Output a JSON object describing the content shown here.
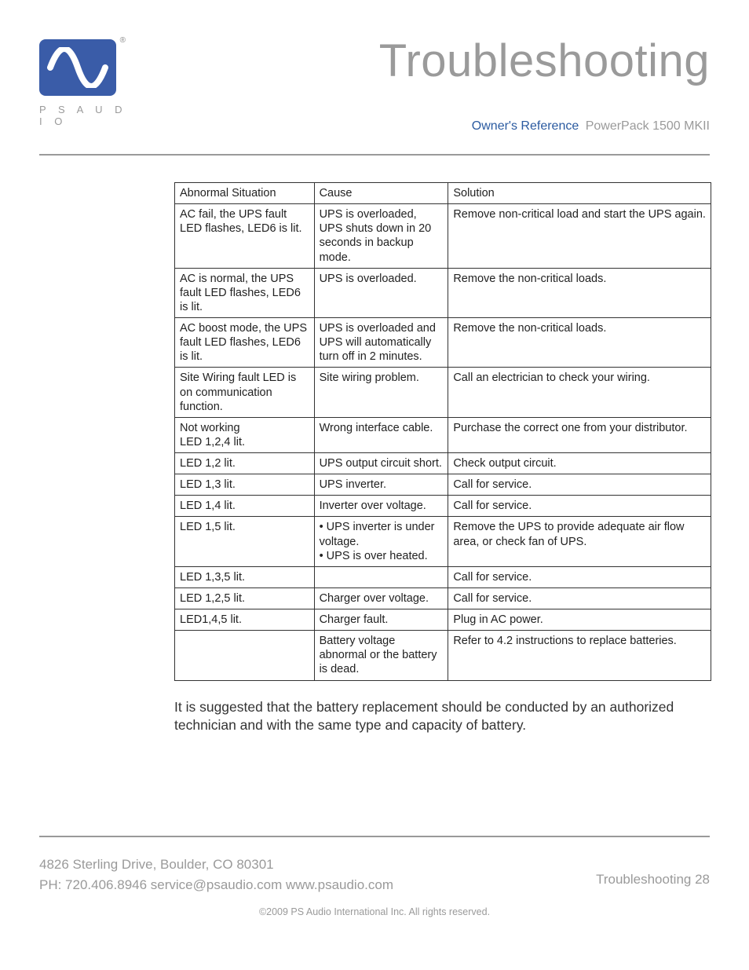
{
  "colors": {
    "brand_blue": "#3a5ca8",
    "accent_blue": "#2a5aa0",
    "gray_text": "#9a9a9a",
    "body_text": "#333333",
    "border": "#333333",
    "background": "#ffffff"
  },
  "typography": {
    "title_fontsize_pt": 44,
    "body_fontsize_pt": 11,
    "footer_fontsize_pt": 13
  },
  "logo": {
    "brand_text": "P S   A U D I O",
    "registered": "®"
  },
  "header": {
    "title": "Troubleshooting",
    "subtitle_blue": "Owner's Reference",
    "subtitle_gray": "PowerPack 1500 MKII"
  },
  "table": {
    "columns": [
      "Abnormal Situation",
      "Cause",
      "Solution"
    ],
    "col_widths_pct": [
      26,
      25,
      49
    ],
    "rows": [
      [
        "AC fail, the UPS fault LED flashes, LED6  is lit.",
        "UPS is overloaded, UPS shuts down in 20 seconds in backup mode.",
        "Remove non-critical load and start the UPS again."
      ],
      [
        "AC is normal, the UPS fault LED flashes, LED6 is lit.",
        "UPS is overloaded.",
        "Remove the non-critical loads."
      ],
      [
        "AC boost mode, the UPS fault LED flashes, LED6 is lit.",
        "UPS is overloaded and UPS will automatically turn off in 2 minutes.",
        "Remove the non-critical loads."
      ],
      [
        "Site Wiring fault LED is on communication function.",
        "Site wiring problem.",
        "Call an electrician to check your wiring."
      ],
      [
        "Not working\nLED 1,2,4 lit.",
        "Wrong interface cable.",
        "Purchase the correct one from your distributor."
      ],
      [
        "LED 1,2 lit.",
        "UPS output circuit short.",
        "Check output circuit."
      ],
      [
        "LED 1,3 lit.",
        "UPS inverter.",
        "Call for service."
      ],
      [
        "LED 1,4 lit.",
        "Inverter over voltage.",
        "Call for service."
      ],
      [
        "LED 1,5 lit.",
        "• UPS inverter is under voltage.\n• UPS is over heated.",
        "Remove the UPS to provide adequate air flow area, or check fan of UPS."
      ],
      [
        "LED 1,3,5 lit.",
        "",
        "Call for service."
      ],
      [
        "LED 1,2,5 lit.",
        "Charger over voltage.",
        "Call for service."
      ],
      [
        "LED1,4,5 lit.",
        "Charger fault.",
        "Plug in AC power."
      ],
      [
        "",
        "Battery voltage abnormal or the battery is dead.",
        "Refer to 4.2 instructions to replace batteries."
      ]
    ]
  },
  "note": "It is suggested that the battery replacement should be conducted by an authorized technician and with the same type and capacity of battery.",
  "footer": {
    "address_line1": "4826 Sterling Drive, Boulder, CO 80301",
    "address_line2": "PH: 720.406.8946 service@psaudio.com www.psaudio.com",
    "page_label": "Troubleshooting 28",
    "copyright": "©2009 PS Audio International Inc.  All rights reserved."
  }
}
